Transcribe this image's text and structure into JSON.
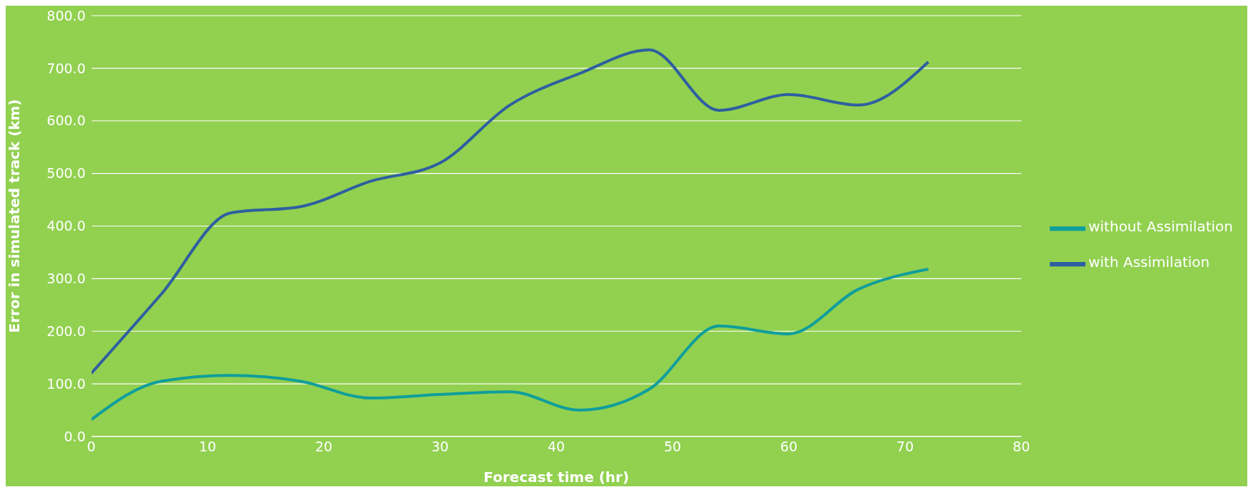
{
  "chart_data": {
    "type": "line",
    "xlabel": "Forecast time (hr)",
    "ylabel": "Error in simulated track (km)",
    "x": [
      0,
      6,
      12,
      18,
      24,
      30,
      36,
      42,
      48,
      54,
      60,
      66,
      72
    ],
    "series": [
      {
        "name": "without Assimilation",
        "color": "#0f9e9b",
        "values": [
          32,
          105,
          116,
          105,
          73,
          80,
          85,
          50,
          90,
          210,
          195,
          280,
          318
        ]
      },
      {
        "name": "with Assimilation",
        "color": "#2e5fa0",
        "values": [
          120,
          270,
          425,
          437,
          485,
          520,
          630,
          690,
          735,
          620,
          650,
          630,
          712
        ]
      }
    ],
    "xlim": [
      0,
      80
    ],
    "xticks": [
      0,
      10,
      20,
      30,
      40,
      50,
      60,
      70,
      80
    ],
    "ylim": [
      0,
      800
    ],
    "yticks": [
      {
        "value": 0,
        "label": "0.0"
      },
      {
        "value": 100,
        "label": "100.0"
      },
      {
        "value": 200,
        "label": "200.0"
      },
      {
        "value": 300,
        "label": "300.0"
      },
      {
        "value": 400,
        "label": "400.0"
      },
      {
        "value": 500,
        "label": "500.0"
      },
      {
        "value": 600,
        "label": "600.0"
      },
      {
        "value": 700,
        "label": "700.0"
      },
      {
        "value": 800,
        "label": "800.0"
      }
    ],
    "grid": "y",
    "legend": "right",
    "marker": "none",
    "line_style": "solid"
  }
}
